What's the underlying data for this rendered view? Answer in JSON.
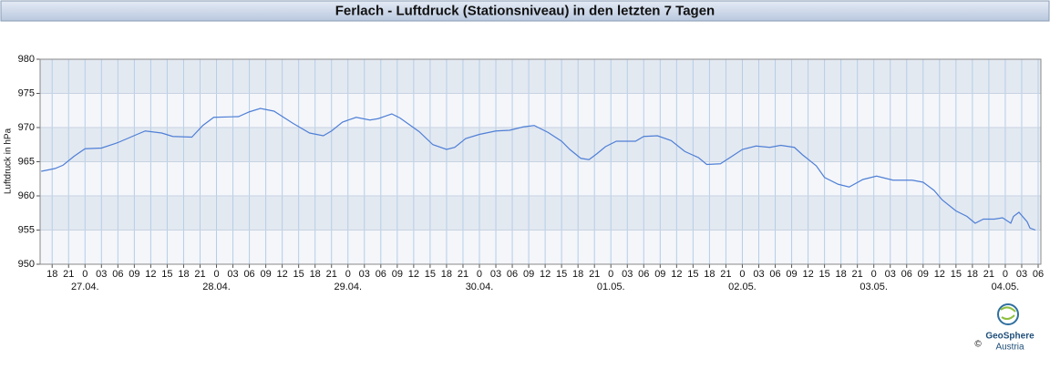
{
  "chart_data": {
    "type": "line",
    "title": "Ferlach - Luftdruck (Stationsniveau) in den letzten 7 Tagen",
    "y_label": "Luftdruck in hPa",
    "x": [
      -8,
      -5.5,
      -4,
      -2,
      0,
      3,
      6,
      9.5,
      11,
      14,
      16,
      19.5,
      21.5,
      23.5,
      28,
      30,
      32,
      34.5,
      38,
      41,
      43.5,
      45,
      47,
      49.5,
      52,
      53.5,
      56,
      57.5,
      61,
      63.5,
      66,
      67.5,
      69.5,
      72,
      75,
      77.5,
      80,
      82,
      84.5,
      87,
      88.5,
      90.5,
      92,
      93.5,
      95,
      97,
      99.5,
      100.5,
      102,
      104.5,
      107,
      109.5,
      112,
      113.5,
      116,
      118.5,
      120,
      122.5,
      125,
      127,
      129.5,
      131,
      133.5,
      135,
      137.5,
      139.5,
      142,
      144.5,
      146,
      147.5,
      151,
      153,
      155,
      156.5,
      159,
      161,
      162.5,
      164,
      166,
      167.5,
      169,
      169.5,
      170.5,
      172,
      172.5,
      173.5
    ],
    "series": [
      {
        "name": "Luftdruck",
        "color": "#4f7fd6",
        "values": [
          963.6,
          964.0,
          964.5,
          965.8,
          966.9,
          967.0,
          967.8,
          969.0,
          969.5,
          969.2,
          968.7,
          968.6,
          970.3,
          971.5,
          971.6,
          972.3,
          972.8,
          972.4,
          970.6,
          969.2,
          968.8,
          969.5,
          970.8,
          971.5,
          971.1,
          971.3,
          972.0,
          971.4,
          969.4,
          967.5,
          966.8,
          967.1,
          968.4,
          969.0,
          969.5,
          969.6,
          970.1,
          970.3,
          969.3,
          968.0,
          966.8,
          965.5,
          965.3,
          966.2,
          967.2,
          968.0,
          968.0,
          968.0,
          968.7,
          968.8,
          968.1,
          966.5,
          965.6,
          964.6,
          964.7,
          966.0,
          966.8,
          967.3,
          967.1,
          967.4,
          967.1,
          966.0,
          964.4,
          962.7,
          961.7,
          961.3,
          962.4,
          962.9,
          962.6,
          962.3,
          962.3,
          962.0,
          960.8,
          959.4,
          957.8,
          957.0,
          956.0,
          956.6,
          956.6,
          956.8,
          956.0,
          957.0,
          957.6,
          956.2,
          955.3,
          955.0
        ]
      }
    ],
    "xlim": [
      -8.2,
      174.5
    ],
    "ylim": [
      950,
      980
    ],
    "yticks": [
      950,
      955,
      960,
      965,
      970,
      975,
      980
    ],
    "xticks": [
      {
        "value": -6,
        "label": "18"
      },
      {
        "value": -3,
        "label": "21"
      },
      {
        "value": 0,
        "label": "0"
      },
      {
        "value": 3,
        "label": "03"
      },
      {
        "value": 6,
        "label": "06"
      },
      {
        "value": 9,
        "label": "09"
      },
      {
        "value": 12,
        "label": "12"
      },
      {
        "value": 15,
        "label": "15"
      },
      {
        "value": 18,
        "label": "18"
      },
      {
        "value": 21,
        "label": "21"
      },
      {
        "value": 24,
        "label": "0"
      },
      {
        "value": 27,
        "label": "03"
      },
      {
        "value": 30,
        "label": "06"
      },
      {
        "value": 33,
        "label": "09"
      },
      {
        "value": 36,
        "label": "12"
      },
      {
        "value": 39,
        "label": "15"
      },
      {
        "value": 42,
        "label": "18"
      },
      {
        "value": 45,
        "label": "21"
      },
      {
        "value": 48,
        "label": "0"
      },
      {
        "value": 51,
        "label": "03"
      },
      {
        "value": 54,
        "label": "06"
      },
      {
        "value": 57,
        "label": "09"
      },
      {
        "value": 60,
        "label": "12"
      },
      {
        "value": 63,
        "label": "15"
      },
      {
        "value": 66,
        "label": "18"
      },
      {
        "value": 69,
        "label": "21"
      },
      {
        "value": 72,
        "label": "0"
      },
      {
        "value": 75,
        "label": "03"
      },
      {
        "value": 78,
        "label": "06"
      },
      {
        "value": 81,
        "label": "09"
      },
      {
        "value": 84,
        "label": "12"
      },
      {
        "value": 87,
        "label": "15"
      },
      {
        "value": 90,
        "label": "18"
      },
      {
        "value": 93,
        "label": "21"
      },
      {
        "value": 96,
        "label": "0"
      },
      {
        "value": 99,
        "label": "03"
      },
      {
        "value": 102,
        "label": "06"
      },
      {
        "value": 105,
        "label": "09"
      },
      {
        "value": 108,
        "label": "12"
      },
      {
        "value": 111,
        "label": "15"
      },
      {
        "value": 114,
        "label": "18"
      },
      {
        "value": 117,
        "label": "21"
      },
      {
        "value": 120,
        "label": "0"
      },
      {
        "value": 123,
        "label": "03"
      },
      {
        "value": 126,
        "label": "06"
      },
      {
        "value": 129,
        "label": "09"
      },
      {
        "value": 132,
        "label": "12"
      },
      {
        "value": 135,
        "label": "15"
      },
      {
        "value": 138,
        "label": "18"
      },
      {
        "value": 141,
        "label": "21"
      },
      {
        "value": 144,
        "label": "0"
      },
      {
        "value": 147,
        "label": "03"
      },
      {
        "value": 150,
        "label": "06"
      },
      {
        "value": 153,
        "label": "09"
      },
      {
        "value": 156,
        "label": "12"
      },
      {
        "value": 159,
        "label": "15"
      },
      {
        "value": 162,
        "label": "18"
      },
      {
        "value": 165,
        "label": "21"
      },
      {
        "value": 168,
        "label": "0"
      },
      {
        "value": 171,
        "label": "03"
      },
      {
        "value": 174,
        "label": "06"
      }
    ],
    "date_ticks": [
      {
        "value": 0,
        "label": "27.04."
      },
      {
        "value": 24,
        "label": "28.04."
      },
      {
        "value": 48,
        "label": "29.04."
      },
      {
        "value": 72,
        "label": "30.04."
      },
      {
        "value": 96,
        "label": "01.05."
      },
      {
        "value": 120,
        "label": "02.05."
      },
      {
        "value": 144,
        "label": "03.05."
      },
      {
        "value": 168,
        "label": "04.05."
      }
    ],
    "grid": true
  },
  "logo": {
    "name": "GeoSphere",
    "sub": "Austria",
    "copyright": "©"
  }
}
